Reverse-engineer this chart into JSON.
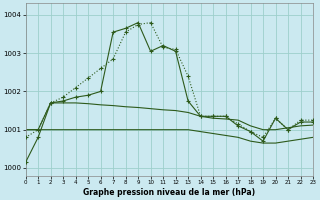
{
  "title": "Graphe pression niveau de la mer (hPa)",
  "background_color": "#cbe9f0",
  "grid_color": "#9dcfcc",
  "line_color": "#2d5a1b",
  "xlim": [
    0,
    23
  ],
  "ylim": [
    999.8,
    1004.3
  ],
  "yticks": [
    1000,
    1001,
    1002,
    1003,
    1004
  ],
  "xtick_labels": [
    "0",
    "1",
    "2",
    "3",
    "4",
    "5",
    "6",
    "7",
    "8",
    "9",
    "10",
    "11",
    "12",
    "13",
    "14",
    "15",
    "16",
    "17",
    "18",
    "19",
    "20",
    "21",
    "22",
    "23"
  ],
  "series1_x": [
    0,
    1,
    2,
    3,
    4,
    5,
    6,
    7,
    8,
    9,
    10,
    11,
    12,
    13,
    14,
    15,
    16,
    17,
    18,
    19,
    20,
    21,
    22,
    23
  ],
  "series1_y": [
    1000.8,
    1001.0,
    1001.7,
    1001.85,
    1002.1,
    1002.35,
    1002.6,
    1002.85,
    1003.55,
    1003.75,
    1003.8,
    1003.15,
    1003.1,
    1002.4,
    1001.35,
    1001.35,
    1001.35,
    1001.15,
    1000.95,
    1000.8,
    1001.3,
    1001.0,
    1001.25,
    1001.25
  ],
  "series2_x": [
    0,
    1,
    2,
    3,
    4,
    5,
    6,
    7,
    8,
    9,
    10,
    11,
    12,
    13,
    14,
    15,
    16,
    17,
    18,
    19,
    20,
    21,
    22,
    23
  ],
  "series2_y": [
    1000.15,
    1000.8,
    1001.7,
    1001.75,
    1001.85,
    1001.9,
    1002.0,
    1003.55,
    1003.65,
    1003.8,
    1003.05,
    1003.2,
    1003.05,
    1001.75,
    1001.35,
    1001.35,
    1001.35,
    1001.1,
    1000.95,
    1000.7,
    1001.3,
    1001.0,
    1001.2,
    1001.2
  ],
  "series3_x": [
    0,
    1,
    2,
    3,
    4,
    5,
    6,
    7,
    8,
    9,
    10,
    11,
    12,
    13,
    14,
    15,
    16,
    17,
    18,
    19,
    20,
    21,
    22,
    23
  ],
  "series3_y": [
    1001.0,
    1001.0,
    1001.7,
    1001.7,
    1001.7,
    1001.68,
    1001.65,
    1001.63,
    1001.6,
    1001.58,
    1001.55,
    1001.52,
    1001.5,
    1001.45,
    1001.35,
    1001.3,
    1001.28,
    1001.25,
    1001.1,
    1001.0,
    1001.0,
    1001.05,
    1001.1,
    1001.12
  ],
  "series4_x": [
    0,
    1,
    2,
    3,
    4,
    5,
    6,
    7,
    8,
    9,
    10,
    11,
    12,
    13,
    14,
    15,
    16,
    17,
    18,
    19,
    20,
    21,
    22,
    23
  ],
  "series4_y": [
    1001.0,
    1001.0,
    1001.0,
    1001.0,
    1001.0,
    1001.0,
    1001.0,
    1001.0,
    1001.0,
    1001.0,
    1001.0,
    1001.0,
    1001.0,
    1001.0,
    1000.95,
    1000.9,
    1000.85,
    1000.8,
    1000.7,
    1000.65,
    1000.65,
    1000.7,
    1000.75,
    1000.8
  ]
}
